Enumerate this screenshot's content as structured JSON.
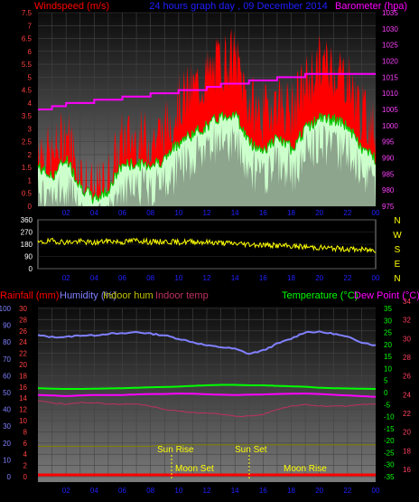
{
  "header": {
    "left_title": "Windspeed (m/s)",
    "center_title": "24 hours graph day , 09 December 2014",
    "right_title": "Barometer (hpa)"
  },
  "colors": {
    "wind_avg": "#ff0000",
    "wind_gust": "#00cc00",
    "wind_fill": "#ccffcc",
    "barometer": "#ff00ff",
    "direction": "#ffff00",
    "humidity": "#8080ff",
    "temperature": "#00ff00",
    "dewpoint": "#ff00ff",
    "indoor_temp": "#c03060",
    "indoor_hum": "#808000",
    "rain": "#ff0000",
    "axis_left": "#ff0000",
    "axis_right": "#ff00ff",
    "axis_temp": "#00cc00",
    "title_blue": "#2020ff"
  },
  "time_ticks": [
    "02",
    "04",
    "06",
    "08",
    "10",
    "12",
    "14",
    "16",
    "18",
    "20",
    "22",
    "00"
  ],
  "wind_panel": {
    "y_ticks": [
      "0",
      "0.5",
      "1",
      "1.5",
      "2",
      "2.5",
      "3",
      "3.5",
      "4",
      "4.5",
      "5",
      "5.5",
      "6",
      "6.5",
      "7",
      "7.5"
    ],
    "baro_ticks": [
      "975",
      "980",
      "985",
      "990",
      "995",
      "1000",
      "1005",
      "1010",
      "1015",
      "1020",
      "1025",
      "1030",
      "1035"
    ]
  },
  "dir_panel": {
    "y_ticks": [
      "0",
      "90",
      "180",
      "270",
      "360"
    ],
    "compass": [
      "N",
      "W",
      "S",
      "E",
      "N"
    ]
  },
  "bottom_panel": {
    "legend_rain": "Rainfall (mm)",
    "legend_humidity": "Humidity (%)",
    "legend_indoor_hum": "Indoor hum",
    "legend_indoor_temp": "Indoor temp",
    "legend_temperature": "Temperature (°C)",
    "legend_dewpoint": "Dew Point (°C)",
    "humidity_ticks": [
      "0",
      "10",
      "20",
      "30",
      "40",
      "50",
      "60",
      "70",
      "80",
      "90",
      "100"
    ],
    "rain_ticks": [
      "0",
      "2",
      "4",
      "6",
      "8",
      "10",
      "12",
      "14",
      "16",
      "18",
      "20",
      "22",
      "24",
      "26",
      "28",
      "30"
    ],
    "temp_ticks": [
      "-35",
      "-30",
      "-25",
      "-20",
      "-15",
      "-10",
      "-5",
      "0",
      "5",
      "10",
      "15",
      "20",
      "25",
      "30",
      "35"
    ],
    "indoor_ticks": [
      "16",
      "18",
      "20",
      "22",
      "24",
      "26",
      "28",
      "30",
      "32",
      "34"
    ],
    "sun_rise": "Sun Rise",
    "sun_set": "Sun Set",
    "moon_set": "Moon Set",
    "moon_rise": "Moon Rise"
  },
  "chart_data": [
    {
      "type": "area",
      "title": "24 hours graph day , 09 December 2014",
      "x_ticks": [
        "02",
        "04",
        "06",
        "08",
        "10",
        "12",
        "14",
        "16",
        "18",
        "20",
        "22",
        "00"
      ],
      "ylabel": "Windspeed (m/s)",
      "ylim": [
        0,
        7.5
      ],
      "y2label": "Barometer (hpa)",
      "y2lim": [
        975,
        1035
      ],
      "x": [
        0,
        1,
        2,
        3,
        4,
        5,
        6,
        7,
        8,
        9,
        10,
        11,
        12,
        13,
        14,
        15,
        16,
        17,
        18,
        19,
        20,
        21,
        22,
        23,
        24
      ],
      "series": [
        {
          "name": "Windspeed (m/s)",
          "values": [
            2.5,
            1.8,
            3.0,
            1.3,
            0.4,
            1.0,
            2.6,
            2.6,
            2.6,
            2.9,
            4.0,
            4.5,
            5.0,
            5.6,
            5.8,
            4.0,
            3.5,
            4.2,
            3.6,
            4.8,
            5.5,
            5.4,
            5.0,
            3.6,
            3.0
          ]
        },
        {
          "name": "Barometer (hpa)",
          "values": [
            1005,
            1006,
            1007,
            1007,
            1008,
            1008,
            1009,
            1009,
            1010,
            1010,
            1011,
            1011,
            1012,
            1013,
            1013,
            1014,
            1014,
            1015,
            1015,
            1016,
            1016,
            1016,
            1016,
            1016,
            1016
          ]
        }
      ]
    },
    {
      "type": "line",
      "x_ticks": [
        "02",
        "04",
        "06",
        "08",
        "10",
        "12",
        "14",
        "16",
        "18",
        "20",
        "22",
        "00"
      ],
      "ylim": [
        0,
        360
      ],
      "x": [
        0,
        2,
        4,
        6,
        8,
        10,
        12,
        14,
        16,
        18,
        20,
        22,
        24
      ],
      "series": [
        {
          "values": [
            190,
            205,
            195,
            200,
            190,
            205,
            195,
            210,
            195,
            200,
            195,
            200,
            195
          ]
        }
      ]
    },
    {
      "type": "line",
      "x_ticks": [
        "02",
        "04",
        "06",
        "08",
        "10",
        "12",
        "14",
        "16",
        "18",
        "20",
        "22",
        "00"
      ],
      "ylim": [
        0,
        100
      ],
      "y2lim": [
        -35,
        35
      ],
      "x": [
        0,
        1,
        2,
        3,
        4,
        5,
        6,
        7,
        8,
        9,
        10,
        11,
        12,
        13,
        14,
        15,
        16,
        17,
        18,
        19,
        20,
        21,
        22,
        23,
        24
      ],
      "series": [
        {
          "name": "Humidity (%)",
          "values": [
            84,
            83,
            83,
            84,
            84,
            85,
            85,
            86,
            85,
            84,
            82,
            80,
            78,
            77,
            76,
            73,
            75,
            79,
            82,
            86,
            86,
            85,
            83,
            80,
            78
          ]
        },
        {
          "name": "Temperature (°C)",
          "values": [
            1.8,
            1.6,
            1.5,
            1.5,
            1.6,
            1.7,
            1.8,
            2.0,
            2.2,
            2.3,
            2.5,
            2.8,
            3.0,
            3.2,
            3.2,
            3.0,
            3.0,
            2.8,
            2.6,
            2.4,
            2.0,
            1.8,
            1.7,
            1.6,
            1.5
          ]
        },
        {
          "name": "Dew Point (°C)",
          "values": [
            -1.0,
            -1.2,
            -1.5,
            -1.2,
            -1.0,
            -1.0,
            -1.0,
            -0.8,
            -0.6,
            -0.6,
            -0.4,
            -0.5,
            -0.7,
            -0.9,
            -1.0,
            -0.9,
            -0.8,
            -0.6,
            -0.5,
            -0.4,
            -0.6,
            -0.9,
            -1.2,
            -1.5,
            -1.8
          ]
        },
        {
          "name": "Indoor temp",
          "values": [
            45,
            44,
            43,
            44,
            44,
            43,
            43,
            43,
            42,
            40,
            39,
            38,
            38,
            37,
            36,
            36,
            37,
            40,
            42,
            43,
            42,
            42,
            42,
            43,
            43
          ]
        },
        {
          "name": "Indoor hum",
          "values": [
            18,
            18,
            18,
            18,
            18,
            18,
            18,
            18,
            18,
            19,
            19,
            19,
            19,
            19,
            19,
            19,
            19,
            19,
            19,
            19,
            19,
            19,
            19,
            19,
            19
          ]
        },
        {
          "name": "Rainfall (mm)",
          "values": [
            0,
            0,
            0,
            0,
            0,
            0,
            0,
            0,
            0,
            0,
            0,
            0,
            0,
            0,
            0,
            0,
            0,
            0,
            0,
            0,
            0,
            0,
            0,
            0,
            0
          ]
        }
      ]
    }
  ]
}
